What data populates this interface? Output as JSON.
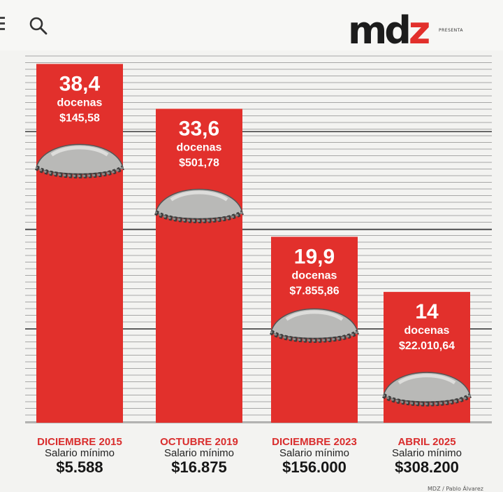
{
  "header": {
    "logo_main": "md",
    "logo_accent": "z",
    "tagline": "PRESENTA",
    "menu_icon": "hamburger-menu-icon",
    "search_icon": "search-icon"
  },
  "colors": {
    "bar": "#e2302c",
    "accent": "#d92d2d",
    "lines": "#6a6a6a",
    "background": "#f3f3f1"
  },
  "chart_data": {
    "type": "bar",
    "categories": [
      "DICIEMBRE 2015",
      "OCTUBRE 2019",
      "DICIEMBRE 2023",
      "ABRIL 2025"
    ],
    "values": [
      38.4,
      33.6,
      19.9,
      14
    ],
    "ylim": [
      0,
      40
    ],
    "grid": true,
    "bar_labels": [
      {
        "value": "38,4",
        "unit": "docenas",
        "price": "$145,58"
      },
      {
        "value": "33,6",
        "unit": "docenas",
        "price": "$501,78"
      },
      {
        "value": "19,9",
        "unit": "docenas",
        "price": "$7.855,86"
      },
      {
        "value": "14",
        "unit": "docenas",
        "price": "$22.010,64"
      }
    ],
    "wage_label": "Salario mínimo",
    "wages": [
      "$5.588",
      "$16.875",
      "$156.000",
      "$308.200"
    ],
    "decoration": "empanada-icon"
  },
  "footer": {
    "credit": "MDZ / Pablo Álvarez"
  }
}
